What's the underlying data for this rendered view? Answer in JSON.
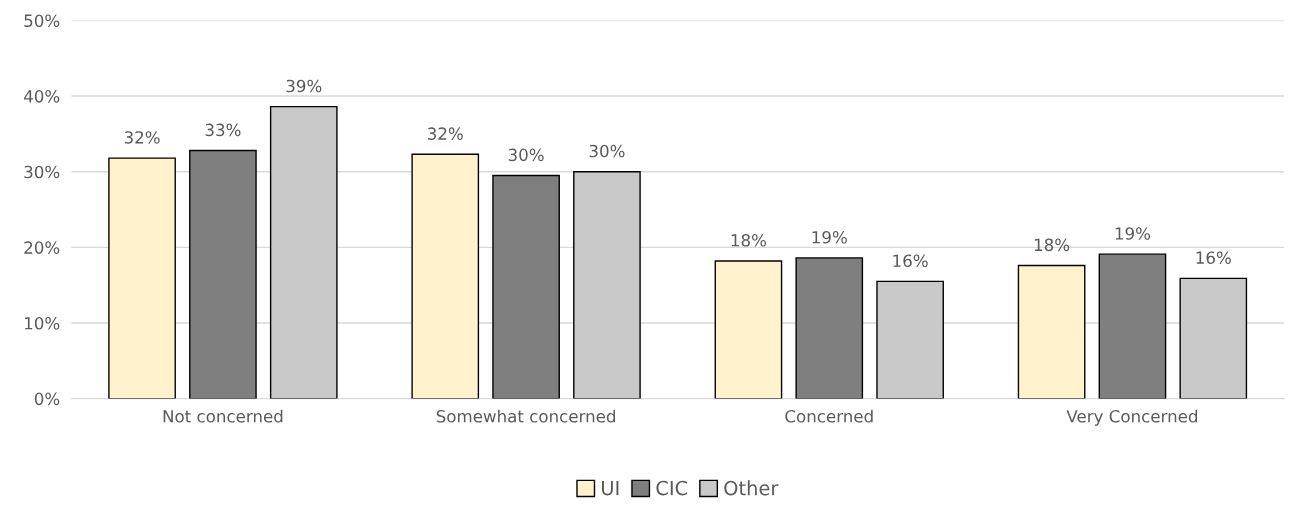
{
  "chart_data": {
    "type": "bar",
    "categories": [
      "Not concerned",
      "Somewhat concerned",
      "Concerned",
      "Very Concerned"
    ],
    "series": [
      {
        "name": "UI",
        "color": "#fff2cc",
        "values": [
          31.8,
          32.3,
          18.2,
          17.6
        ],
        "value_labels": [
          "32%",
          "32%",
          "18%",
          "18%"
        ]
      },
      {
        "name": "CIC",
        "color": "#7f7f7f",
        "values": [
          32.8,
          29.5,
          18.6,
          19.1
        ],
        "value_labels": [
          "33%",
          "30%",
          "19%",
          "19%"
        ]
      },
      {
        "name": "Other",
        "color": "#c9c9c9",
        "values": [
          38.6,
          30.0,
          15.5,
          15.9
        ],
        "value_labels": [
          "39%",
          "30%",
          "16%",
          "16%"
        ]
      }
    ],
    "ylim": [
      0,
      50
    ],
    "yticks": [
      {
        "value": 0,
        "label": "0%"
      },
      {
        "value": 10,
        "label": "10%"
      },
      {
        "value": 20,
        "label": "20%"
      },
      {
        "value": 30,
        "label": "30%"
      },
      {
        "value": 40,
        "label": "40%"
      },
      {
        "value": 50,
        "label": "50%"
      }
    ],
    "grid": "y",
    "legend": "bottom"
  }
}
